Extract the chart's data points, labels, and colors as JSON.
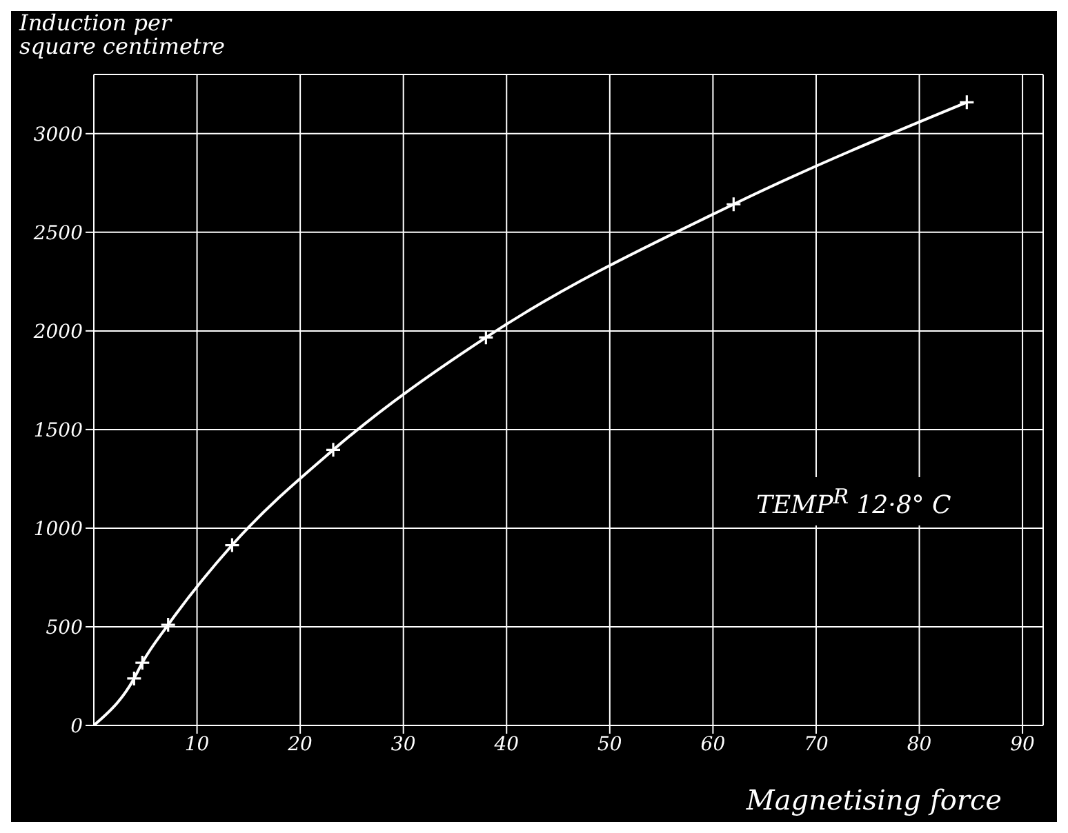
{
  "chart_data": {
    "type": "line",
    "xlabel": "Magnetising force",
    "ylabel": "Induction per\nsquare centimetre",
    "annotations": [
      "TEMP$^{R}$ 12·8° C"
    ],
    "xlim": [
      0,
      92
    ],
    "xticks": [
      10,
      20,
      30,
      40,
      50,
      60,
      70,
      80,
      90
    ],
    "ylim": [
      0,
      3300
    ],
    "yticks": [
      0,
      500,
      1000,
      1500,
      2000,
      2500,
      3000
    ],
    "grid": true,
    "series": [
      {
        "marker": "none",
        "color": "#ffffff",
        "x": [
          0,
          3.9,
          4.7,
          7.2,
          13.4,
          23.2,
          38.0,
          62.0,
          84.6
        ],
        "values": [
          0,
          238,
          318,
          510,
          914,
          1397,
          1967,
          2642,
          3159
        ]
      },
      {
        "type": "scatter",
        "marker": "cross",
        "color": "#ffffff",
        "x": [
          3.9,
          4.7,
          7.2,
          13.4,
          23.2,
          38.0,
          62.0,
          84.6
        ],
        "values": [
          238,
          318,
          510,
          914,
          1397,
          1967,
          2642,
          3159
        ]
      }
    ]
  }
}
